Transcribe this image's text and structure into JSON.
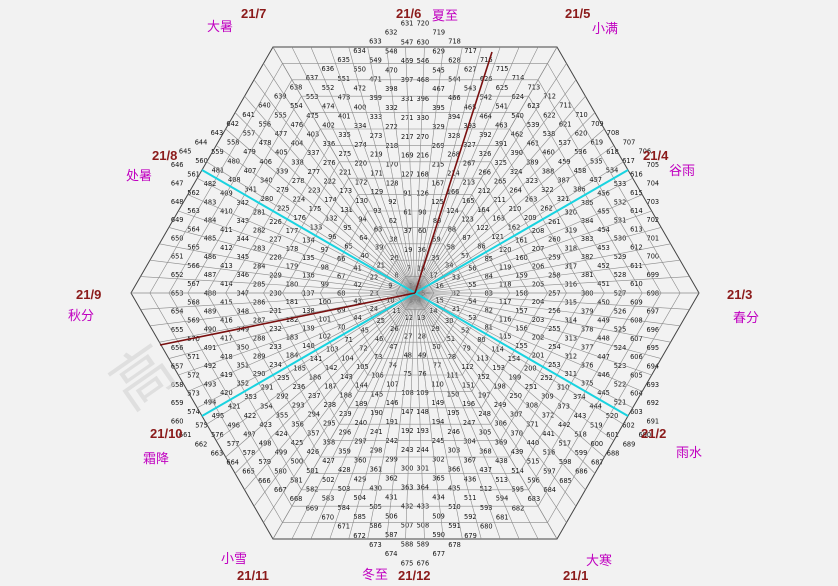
{
  "diagram": {
    "layers": 15,
    "max_number": 720,
    "colors": {
      "background": "#f2f2f2",
      "grid": "#8a8a8a",
      "date_label": "#8b1a1a",
      "term_label": "#c000c0",
      "season_lines": "#19d3e0",
      "sun_rays": "#7a1010"
    },
    "dates": [
      {
        "id": "top",
        "text": "21/6"
      },
      {
        "id": "top-left",
        "text": "21/7"
      },
      {
        "id": "top-right",
        "text": "21/5"
      },
      {
        "id": "upper-left",
        "text": "21/8"
      },
      {
        "id": "upper-right",
        "text": "21/4"
      },
      {
        "id": "left",
        "text": "21/9"
      },
      {
        "id": "right",
        "text": "21/3"
      },
      {
        "id": "lower-left",
        "text": "21/10"
      },
      {
        "id": "lower-right",
        "text": "21/2"
      },
      {
        "id": "bottom-left",
        "text": "21/11"
      },
      {
        "id": "bottom",
        "text": "21/12"
      },
      {
        "id": "bottom-right",
        "text": "21/1"
      }
    ],
    "terms": [
      {
        "id": "xiazhi",
        "text": "夏至"
      },
      {
        "id": "dashu",
        "text": "大暑"
      },
      {
        "id": "xiaoman",
        "text": "小满"
      },
      {
        "id": "chushu",
        "text": "处暑"
      },
      {
        "id": "guyu",
        "text": "谷雨"
      },
      {
        "id": "qiufen",
        "text": "秋分"
      },
      {
        "id": "chunfen",
        "text": "春分"
      },
      {
        "id": "shuangjiang",
        "text": "霜降"
      },
      {
        "id": "yushui",
        "text": "雨水"
      },
      {
        "id": "xiaoxue",
        "text": "小雪"
      },
      {
        "id": "dongzhi",
        "text": "冬至"
      },
      {
        "id": "dahan",
        "text": "大寒"
      }
    ],
    "watermark": "高"
  }
}
